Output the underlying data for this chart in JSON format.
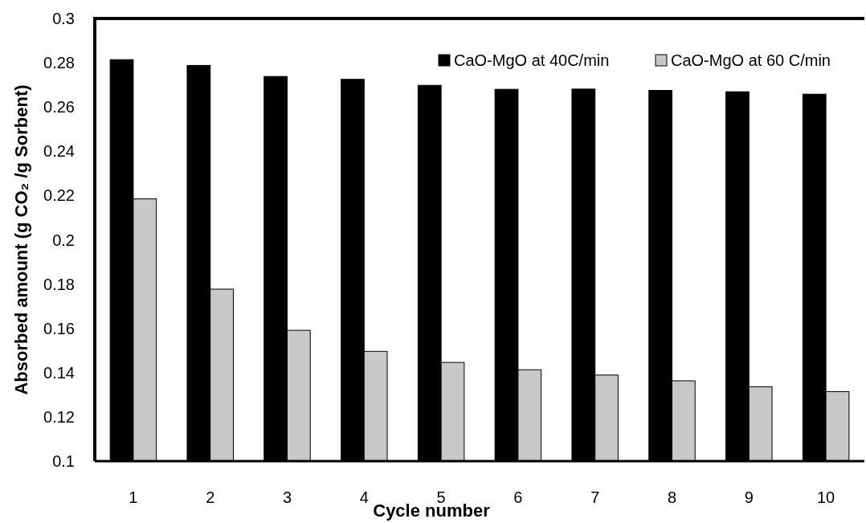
{
  "chart_data": {
    "type": "bar",
    "xlabel": "Cycle number",
    "ylabel": "Absorbed amount (g CO₂ /g Sorbent)",
    "categories": [
      "1",
      "2",
      "3",
      "4",
      "5",
      "6",
      "7",
      "8",
      "9",
      "10"
    ],
    "series": [
      {
        "name": "CaO-MgO at 40C/min",
        "color": "#000000",
        "values": [
          0.2814,
          0.2788,
          0.2738,
          0.2725,
          0.2698,
          0.268,
          0.2681,
          0.2675,
          0.2669,
          0.2658
        ]
      },
      {
        "name": "CaO-MgO at 60 C/min",
        "color": "#c8c8c8",
        "values": [
          0.2185,
          0.1777,
          0.1591,
          0.1496,
          0.1446,
          0.1413,
          0.1389,
          0.1363,
          0.1336,
          0.1314
        ]
      }
    ],
    "ylim": [
      0.1,
      0.3
    ],
    "yticks": [
      0.1,
      0.12,
      0.14,
      0.16,
      0.18,
      0.2,
      0.22,
      0.24,
      0.26,
      0.28,
      0.3
    ],
    "grid": false,
    "legend": "top right"
  }
}
